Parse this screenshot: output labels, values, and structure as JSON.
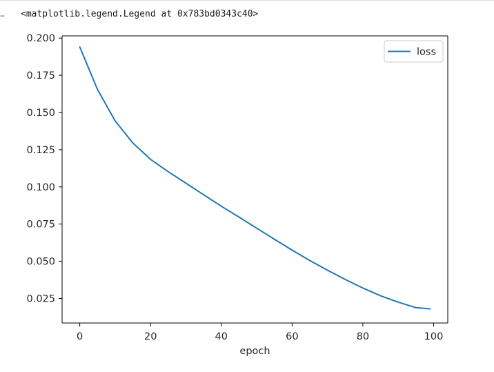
{
  "cell": {
    "prompt_marker": "…",
    "output_text": "<matplotlib.legend.Legend at 0x783bd0343c40>"
  },
  "colors": {
    "series_line": "#1f77b4",
    "axes": "#000000",
    "legend_border": "#cccccc"
  },
  "chart_data": {
    "type": "line",
    "title": "",
    "xlabel": "epoch",
    "ylabel": "",
    "xlim": [
      -5,
      104
    ],
    "ylim": [
      0.0085,
      0.2015
    ],
    "xticks": [
      0,
      20,
      40,
      60,
      80,
      100
    ],
    "xtick_labels": [
      "0",
      "20",
      "40",
      "60",
      "80",
      "100"
    ],
    "yticks": [
      0.025,
      0.05,
      0.075,
      0.1,
      0.125,
      0.15,
      0.175,
      0.2
    ],
    "ytick_labels": [
      "0.025",
      "0.050",
      "0.075",
      "0.100",
      "0.125",
      "0.150",
      "0.175",
      "0.200"
    ],
    "grid": false,
    "legend_position": "top-right",
    "series": [
      {
        "name": "loss",
        "x": [
          0,
          5,
          10,
          15,
          20,
          25,
          30,
          35,
          40,
          45,
          50,
          55,
          60,
          65,
          70,
          75,
          80,
          85,
          90,
          95,
          99
        ],
        "y": [
          0.194,
          0.1655,
          0.1443,
          0.1295,
          0.1185,
          0.1102,
          0.1025,
          0.0947,
          0.087,
          0.0797,
          0.0722,
          0.0648,
          0.0575,
          0.0505,
          0.044,
          0.0378,
          0.032,
          0.0268,
          0.0225,
          0.0188,
          0.018
        ]
      }
    ]
  }
}
